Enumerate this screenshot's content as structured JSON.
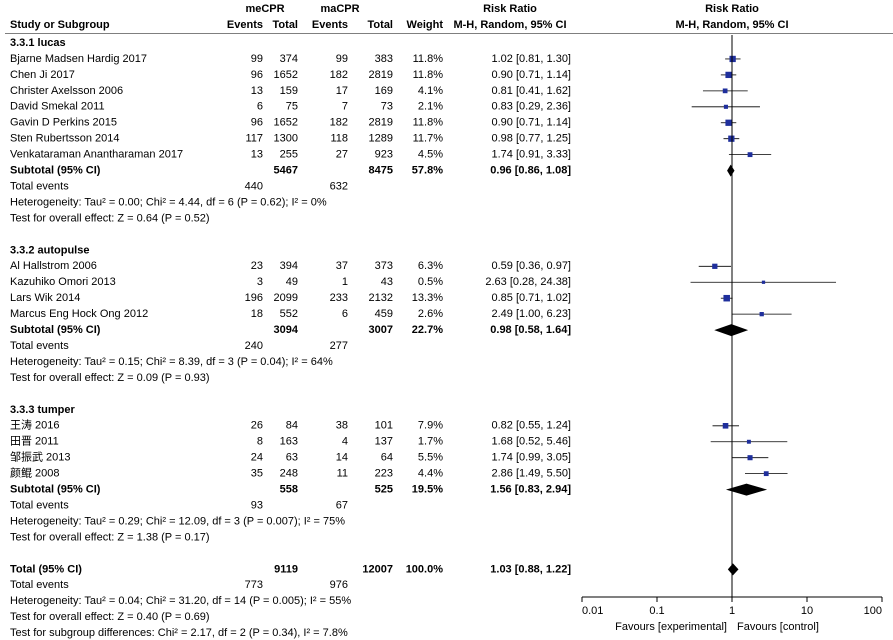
{
  "chart_data": {
    "type": "forest",
    "header": {
      "study": "Study or Subgroup",
      "group1": "meCPR",
      "group2": "maCPR",
      "events": "Events",
      "total": "Total",
      "weight": "Weight",
      "rr_title": "Risk Ratio",
      "rr_method": "M-H, Random, 95% CI"
    },
    "labels": {
      "subtotal": "Subtotal (95% CI)",
      "total_events": "Total events",
      "total": "Total (95% CI)"
    },
    "subgroups": [
      {
        "name": "3.3.1 lucas",
        "studies": [
          {
            "name": "Bjarne Madsen Hardig 2017",
            "e1": 99,
            "n1": 374,
            "e2": 99,
            "n2": 383,
            "weight": 11.8,
            "weight_label": "11.8%",
            "rr": 1.02,
            "lo": 0.81,
            "hi": 1.3,
            "ci_label": "1.02 [0.81, 1.30]"
          },
          {
            "name": "Chen Ji 2017",
            "e1": 96,
            "n1": 1652,
            "e2": 182,
            "n2": 2819,
            "weight": 11.8,
            "weight_label": "11.8%",
            "rr": 0.9,
            "lo": 0.71,
            "hi": 1.14,
            "ci_label": "0.90 [0.71, 1.14]"
          },
          {
            "name": "Christer Axelsson 2006",
            "e1": 13,
            "n1": 159,
            "e2": 17,
            "n2": 169,
            "weight": 4.1,
            "weight_label": "4.1%",
            "rr": 0.81,
            "lo": 0.41,
            "hi": 1.62,
            "ci_label": "0.81 [0.41, 1.62]"
          },
          {
            "name": "David Smekal 2011",
            "e1": 6,
            "n1": 75,
            "e2": 7,
            "n2": 73,
            "weight": 2.1,
            "weight_label": "2.1%",
            "rr": 0.83,
            "lo": 0.29,
            "hi": 2.36,
            "ci_label": "0.83 [0.29, 2.36]"
          },
          {
            "name": "Gavin D Perkins 2015",
            "e1": 96,
            "n1": 1652,
            "e2": 182,
            "n2": 2819,
            "weight": 11.8,
            "weight_label": "11.8%",
            "rr": 0.9,
            "lo": 0.71,
            "hi": 1.14,
            "ci_label": "0.90 [0.71, 1.14]"
          },
          {
            "name": "Sten Rubertsson 2014",
            "e1": 117,
            "n1": 1300,
            "e2": 118,
            "n2": 1289,
            "weight": 11.7,
            "weight_label": "11.7%",
            "rr": 0.98,
            "lo": 0.77,
            "hi": 1.25,
            "ci_label": "0.98 [0.77, 1.25]"
          },
          {
            "name": "Venkataraman Anantharaman 2017",
            "e1": 13,
            "n1": 255,
            "e2": 27,
            "n2": 923,
            "weight": 4.5,
            "weight_label": "4.5%",
            "rr": 1.74,
            "lo": 0.91,
            "hi": 3.33,
            "ci_label": "1.74 [0.91, 3.33]"
          }
        ],
        "subtotal": {
          "n1": 5467,
          "n2": 8475,
          "weight": 57.8,
          "weight_label": "57.8%",
          "rr": 0.96,
          "lo": 0.86,
          "hi": 1.08,
          "ci_label": "0.96 [0.86, 1.08]"
        },
        "events": {
          "e1": 440,
          "e2": 632
        },
        "heterogeneity": "Heterogeneity: Tau² = 0.00; Chi² = 4.44, df = 6 (P = 0.62); I² = 0%",
        "overall": "Test for overall effect: Z = 0.64 (P = 0.52)"
      },
      {
        "name": "3.3.2 autopulse",
        "studies": [
          {
            "name": "Al Hallstrom 2006",
            "e1": 23,
            "n1": 394,
            "e2": 37,
            "n2": 373,
            "weight": 6.3,
            "weight_label": "6.3%",
            "rr": 0.59,
            "lo": 0.36,
            "hi": 0.97,
            "ci_label": "0.59 [0.36, 0.97]"
          },
          {
            "name": "Kazuhiko Omori 2013",
            "e1": 3,
            "n1": 49,
            "e2": 1,
            "n2": 43,
            "weight": 0.5,
            "weight_label": "0.5%",
            "rr": 2.63,
            "lo": 0.28,
            "hi": 24.38,
            "ci_label": "2.63 [0.28, 24.38]"
          },
          {
            "name": "Lars Wik 2014",
            "e1": 196,
            "n1": 2099,
            "e2": 233,
            "n2": 2132,
            "weight": 13.3,
            "weight_label": "13.3%",
            "rr": 0.85,
            "lo": 0.71,
            "hi": 1.02,
            "ci_label": "0.85 [0.71, 1.02]"
          },
          {
            "name": "Marcus Eng Hock Ong 2012",
            "e1": 18,
            "n1": 552,
            "e2": 6,
            "n2": 459,
            "weight": 2.6,
            "weight_label": "2.6%",
            "rr": 2.49,
            "lo": 1.0,
            "hi": 6.23,
            "ci_label": "2.49 [1.00, 6.23]"
          }
        ],
        "subtotal": {
          "n1": 3094,
          "n2": 3007,
          "weight": 22.7,
          "weight_label": "22.7%",
          "rr": 0.98,
          "lo": 0.58,
          "hi": 1.64,
          "ci_label": "0.98 [0.58, 1.64]"
        },
        "events": {
          "e1": 240,
          "e2": 277
        },
        "heterogeneity": "Heterogeneity: Tau² = 0.15; Chi² = 8.39, df = 3 (P = 0.04); I² = 64%",
        "overall": "Test for overall effect: Z = 0.09 (P = 0.93)"
      },
      {
        "name": "3.3.3 tumper",
        "studies": [
          {
            "name": "王涛 2016",
            "e1": 26,
            "n1": 84,
            "e2": 38,
            "n2": 101,
            "weight": 7.9,
            "weight_label": "7.9%",
            "rr": 0.82,
            "lo": 0.55,
            "hi": 1.24,
            "ci_label": "0.82 [0.55, 1.24]"
          },
          {
            "name": "田晋 2011",
            "e1": 8,
            "n1": 163,
            "e2": 4,
            "n2": 137,
            "weight": 1.7,
            "weight_label": "1.7%",
            "rr": 1.68,
            "lo": 0.52,
            "hi": 5.46,
            "ci_label": "1.68 [0.52, 5.46]"
          },
          {
            "name": "邹振武 2013",
            "e1": 24,
            "n1": 63,
            "e2": 14,
            "n2": 64,
            "weight": 5.5,
            "weight_label": "5.5%",
            "rr": 1.74,
            "lo": 0.99,
            "hi": 3.05,
            "ci_label": "1.74 [0.99, 3.05]"
          },
          {
            "name": "颜鲲 2008",
            "e1": 35,
            "n1": 248,
            "e2": 11,
            "n2": 223,
            "weight": 4.4,
            "weight_label": "4.4%",
            "rr": 2.86,
            "lo": 1.49,
            "hi": 5.5,
            "ci_label": "2.86 [1.49, 5.50]"
          }
        ],
        "subtotal": {
          "n1": 558,
          "n2": 525,
          "weight": 19.5,
          "weight_label": "19.5%",
          "rr": 1.56,
          "lo": 0.83,
          "hi": 2.94,
          "ci_label": "1.56 [0.83, 2.94]"
        },
        "events": {
          "e1": 93,
          "e2": 67
        },
        "heterogeneity": "Heterogeneity: Tau² = 0.29; Chi² = 12.09, df = 3 (P = 0.007); I² = 75%",
        "overall": "Test for overall effect: Z = 1.38 (P = 0.17)"
      }
    ],
    "total": {
      "n1": 9119,
      "n2": 12007,
      "weight": 100.0,
      "weight_label": "100.0%",
      "rr": 1.03,
      "lo": 0.88,
      "hi": 1.22,
      "ci_label": "1.03 [0.88, 1.22]",
      "events": {
        "e1": 773,
        "e2": 976
      },
      "heterogeneity": "Heterogeneity: Tau² = 0.04; Chi² = 31.20, df = 14 (P = 0.005); I² = 55%",
      "overall": "Test for overall effect: Z = 0.40 (P = 0.69)",
      "subgroup_differences": "Test for subgroup differences: Chi² = 2.17, df = 2 (P = 0.34), I² = 7.8%"
    },
    "plot_title": "Risk Ratio",
    "plot_method": "M-H, Random, 95% CI",
    "xlim": [
      0.01,
      100
    ],
    "xticks": [
      0.01,
      0.1,
      1,
      10,
      100
    ],
    "log_x": true,
    "reference_line": 1,
    "xlabel_left": "Favours [experimental]",
    "xlabel_right": "Favours [control]",
    "marker_color": "#1f2f9c"
  }
}
